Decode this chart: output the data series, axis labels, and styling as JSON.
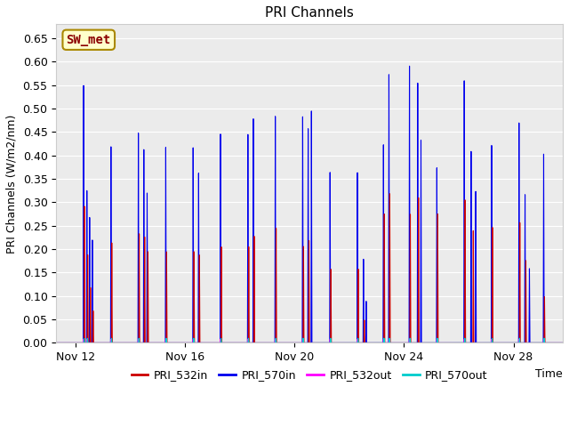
{
  "title": "PRI Channels",
  "ylabel": "PRI Channels (W/m2/nm)",
  "xlabel": "Time",
  "ylim": [
    0,
    0.68
  ],
  "yticks": [
    0.0,
    0.05,
    0.1,
    0.15,
    0.2,
    0.25,
    0.3,
    0.35,
    0.4,
    0.45,
    0.5,
    0.55,
    0.6,
    0.65
  ],
  "xtick_labels": [
    "Nov 12",
    "Nov 16",
    "Nov 20",
    "Nov 24",
    "Nov 28"
  ],
  "xtick_days": [
    12,
    16,
    20,
    24,
    28
  ],
  "annotation_text": "SW_met",
  "annotation_bg": "#ffffcc",
  "annotation_border": "#aa8800",
  "fig_bg": "#ffffff",
  "plot_bg": "#ebebeb",
  "colors": {
    "PRI_532in": "#cc0000",
    "PRI_570in": "#0000ee",
    "PRI_532out": "#ff00ff",
    "PRI_570out": "#00cccc"
  },
  "xlim": [
    11.3,
    29.8
  ],
  "spikes_570in": [
    [
      12.3,
      0.55
    ],
    [
      12.42,
      0.33
    ],
    [
      12.52,
      0.27
    ],
    [
      12.62,
      0.22
    ],
    [
      13.3,
      0.42
    ],
    [
      14.3,
      0.45
    ],
    [
      14.5,
      0.42
    ],
    [
      14.62,
      0.32
    ],
    [
      15.3,
      0.42
    ],
    [
      16.3,
      0.42
    ],
    [
      16.5,
      0.37
    ],
    [
      17.3,
      0.45
    ],
    [
      18.3,
      0.45
    ],
    [
      18.5,
      0.49
    ],
    [
      19.3,
      0.49
    ],
    [
      20.3,
      0.49
    ],
    [
      20.5,
      0.47
    ],
    [
      20.62,
      0.5
    ],
    [
      21.3,
      0.37
    ],
    [
      22.3,
      0.37
    ],
    [
      22.52,
      0.18
    ],
    [
      22.62,
      0.09
    ],
    [
      23.25,
      0.43
    ],
    [
      23.45,
      0.59
    ],
    [
      24.2,
      0.6
    ],
    [
      24.5,
      0.57
    ],
    [
      24.62,
      0.44
    ],
    [
      25.2,
      0.38
    ],
    [
      26.2,
      0.57
    ],
    [
      26.45,
      0.42
    ],
    [
      26.62,
      0.33
    ],
    [
      27.2,
      0.43
    ],
    [
      28.2,
      0.48
    ],
    [
      28.42,
      0.32
    ],
    [
      28.58,
      0.16
    ],
    [
      29.1,
      0.41
    ]
  ],
  "spikes_532in": [
    [
      12.33,
      0.3
    ],
    [
      12.45,
      0.19
    ],
    [
      12.55,
      0.12
    ],
    [
      12.65,
      0.07
    ],
    [
      13.33,
      0.22
    ],
    [
      14.33,
      0.24
    ],
    [
      14.53,
      0.23
    ],
    [
      14.65,
      0.2
    ],
    [
      15.33,
      0.2
    ],
    [
      16.33,
      0.2
    ],
    [
      16.53,
      0.19
    ],
    [
      17.33,
      0.21
    ],
    [
      18.33,
      0.21
    ],
    [
      18.53,
      0.23
    ],
    [
      19.33,
      0.25
    ],
    [
      20.33,
      0.21
    ],
    [
      20.53,
      0.22
    ],
    [
      21.33,
      0.16
    ],
    [
      22.33,
      0.16
    ],
    [
      22.55,
      0.05
    ],
    [
      23.28,
      0.28
    ],
    [
      23.48,
      0.32
    ],
    [
      24.23,
      0.28
    ],
    [
      24.53,
      0.31
    ],
    [
      25.23,
      0.28
    ],
    [
      26.23,
      0.31
    ],
    [
      26.53,
      0.24
    ],
    [
      27.23,
      0.25
    ],
    [
      28.23,
      0.26
    ],
    [
      28.45,
      0.18
    ],
    [
      29.13,
      0.1
    ]
  ],
  "spikes_532out": [
    [
      12.3,
      0.008
    ],
    [
      12.42,
      0.008
    ],
    [
      13.3,
      0.008
    ],
    [
      14.3,
      0.008
    ],
    [
      15.3,
      0.008
    ],
    [
      16.3,
      0.008
    ],
    [
      17.3,
      0.008
    ],
    [
      18.3,
      0.008
    ],
    [
      19.3,
      0.008
    ],
    [
      20.3,
      0.008
    ],
    [
      21.3,
      0.008
    ],
    [
      22.3,
      0.008
    ],
    [
      23.25,
      0.008
    ],
    [
      23.45,
      0.008
    ],
    [
      24.2,
      0.008
    ],
    [
      25.2,
      0.008
    ],
    [
      26.2,
      0.008
    ],
    [
      27.2,
      0.008
    ],
    [
      28.2,
      0.008
    ],
    [
      29.1,
      0.008
    ]
  ],
  "spikes_570out": [
    [
      12.32,
      0.01
    ],
    [
      12.44,
      0.01
    ],
    [
      13.32,
      0.01
    ],
    [
      14.32,
      0.01
    ],
    [
      15.32,
      0.01
    ],
    [
      16.32,
      0.01
    ],
    [
      17.32,
      0.01
    ],
    [
      18.32,
      0.01
    ],
    [
      19.32,
      0.01
    ],
    [
      20.32,
      0.01
    ],
    [
      21.32,
      0.01
    ],
    [
      22.32,
      0.01
    ],
    [
      23.27,
      0.01
    ],
    [
      23.47,
      0.01
    ],
    [
      24.22,
      0.01
    ],
    [
      25.22,
      0.01
    ],
    [
      26.22,
      0.01
    ],
    [
      27.22,
      0.01
    ],
    [
      28.22,
      0.01
    ],
    [
      29.12,
      0.01
    ]
  ]
}
